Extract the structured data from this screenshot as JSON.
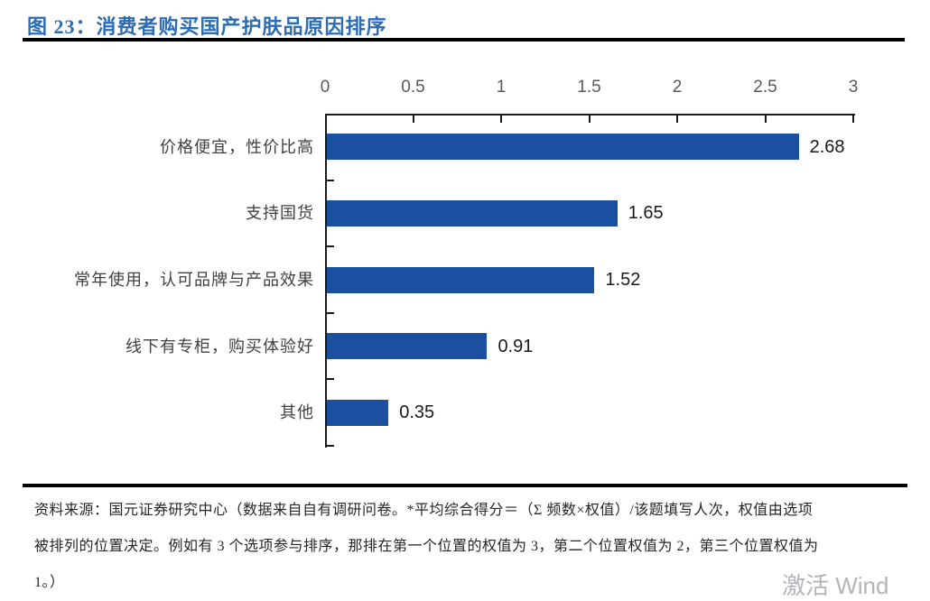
{
  "header": {
    "title": "图 23：消费者购买国产护肤品原因排序"
  },
  "chart_data": {
    "type": "bar",
    "orientation": "horizontal",
    "title": "消费者购买国产护肤品原因排序",
    "categories": [
      "价格便宜，性价比高",
      "支持国货",
      "常年使用，认可品牌与产品效果",
      "线下有专柜，购买体验好",
      "其他"
    ],
    "values": [
      2.68,
      1.65,
      1.52,
      0.91,
      0.35
    ],
    "value_labels": [
      "2.68",
      "1.65",
      "1.52",
      "0.91",
      "0.35"
    ],
    "xlim": [
      0,
      3
    ],
    "x_ticks": [
      "0",
      "0.5",
      "1",
      "1.5",
      "2",
      "2.5",
      "3"
    ],
    "axis_position": "top",
    "grid": false,
    "legend": "none",
    "bar_color": "#1B4F9F"
  },
  "footer": {
    "lines": [
      "资料来源：国元证券研究中心（数据来自自有调研问卷。*平均综合得分＝（Σ 频数×权值）/该题填写人次，权值由选项",
      "被排列的位置决定。例如有 3 个选项参与排序，那排在第一个位置的权值为 3，第二个位置权值为 2，第三个位置权值为",
      "1。）"
    ]
  },
  "watermark": {
    "text": "激活 Wind"
  },
  "colors": {
    "title_blue": "#2C6CB4",
    "bar_blue": "#1B4F9F",
    "axis_line": "#1a1a1a",
    "tick_label_gray": "#595959",
    "rule_black": "#000000",
    "watermark_gray": "#b4b4ba"
  }
}
